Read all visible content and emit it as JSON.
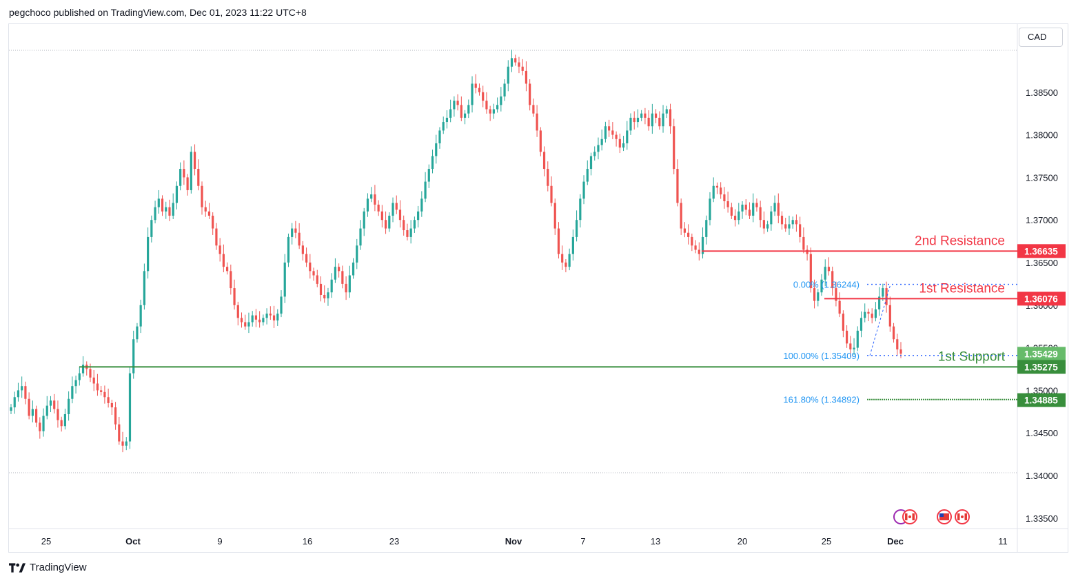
{
  "header": {
    "publish_line": "pegchoco published on TradingView.com, Dec 01, 2023 11:22 UTC+8"
  },
  "currency_label": "CAD",
  "footer": {
    "brand": "TradingView"
  },
  "colors": {
    "up": "#26a69a",
    "down": "#ef5350",
    "resistance": "#f23645",
    "support": "#388e3c",
    "fib": "#2962ff",
    "text": "#131722",
    "axis_text": "#131722"
  },
  "chart_data": {
    "type": "candlestick",
    "symbol_currency": "CAD",
    "ylim": [
      1.3325,
      1.388
    ],
    "y_ticks": [
      "1.34000",
      "1.34500",
      "1.35000",
      "1.35500",
      "1.36000",
      "1.36500",
      "1.37000",
      "1.37500",
      "1.38000",
      "1.38500"
    ],
    "x_ticks": [
      "25",
      "Oct",
      "9",
      "16",
      "23",
      "Nov",
      "7",
      "13",
      "20",
      "25",
      "Dec",
      "11"
    ],
    "price_labels": [
      {
        "value": "1.36635",
        "kind": "resistance"
      },
      {
        "value": "1.36076",
        "kind": "resistance"
      },
      {
        "value": "1.35429",
        "kind": "current"
      },
      {
        "value": "1.35275",
        "kind": "support"
      },
      {
        "value": "1.34885",
        "kind": "support"
      }
    ],
    "levels": [
      {
        "name": "2nd Resistance",
        "price": 1.36635
      },
      {
        "name": "1st Resistance",
        "price": 1.36076
      },
      {
        "name": "1st Support",
        "price": 1.35275
      }
    ],
    "fib_levels": [
      {
        "label": "0.00% (1.36244)",
        "price": 1.36244
      },
      {
        "label": "100.00% (1.35409)",
        "price": 1.35409
      },
      {
        "label": "161.80% (1.34892)",
        "price": 1.34892
      }
    ],
    "close_path": [
      1.348,
      1.3492,
      1.35,
      1.3505,
      1.349,
      1.347,
      1.3478,
      1.3462,
      1.3452,
      1.347,
      1.3482,
      1.3488,
      1.3478,
      1.3465,
      1.3458,
      1.3472,
      1.349,
      1.3505,
      1.3512,
      1.352,
      1.353,
      1.3525,
      1.3515,
      1.3508,
      1.35,
      1.3498,
      1.3492,
      1.3485,
      1.348,
      1.346,
      1.344,
      1.3435,
      1.344,
      1.352,
      1.356,
      1.3575,
      1.36,
      1.364,
      1.368,
      1.37,
      1.3715,
      1.3725,
      1.371,
      1.3715,
      1.3705,
      1.372,
      1.374,
      1.376,
      1.375,
      1.3735,
      1.378,
      1.376,
      1.374,
      1.3715,
      1.371,
      1.3705,
      1.369,
      1.367,
      1.366,
      1.3645,
      1.364,
      1.362,
      1.36,
      1.3585,
      1.358,
      1.3575,
      1.358,
      1.3588,
      1.3583,
      1.358,
      1.3585,
      1.359,
      1.3588,
      1.3582,
      1.359,
      1.361,
      1.365,
      1.368,
      1.369,
      1.3685,
      1.367,
      1.366,
      1.365,
      1.364,
      1.3635,
      1.3625,
      1.3612,
      1.3608,
      1.3615,
      1.363,
      1.3645,
      1.364,
      1.3625,
      1.3615,
      1.3635,
      1.365,
      1.367,
      1.369,
      1.371,
      1.3725,
      1.373,
      1.3718,
      1.371,
      1.37,
      1.369,
      1.3705,
      1.372,
      1.3712,
      1.37,
      1.3688,
      1.368,
      1.369,
      1.37,
      1.371,
      1.3725,
      1.3745,
      1.376,
      1.3775,
      1.379,
      1.3805,
      1.3815,
      1.382,
      1.383,
      1.384,
      1.3835,
      1.382,
      1.3825,
      1.3835,
      1.386,
      1.3855,
      1.385,
      1.384,
      1.383,
      1.3825,
      1.383,
      1.3835,
      1.3845,
      1.386,
      1.388,
      1.389,
      1.3885,
      1.388,
      1.3875,
      1.386,
      1.3835,
      1.3825,
      1.3805,
      1.378,
      1.376,
      1.374,
      1.372,
      1.369,
      1.366,
      1.365,
      1.3645,
      1.366,
      1.368,
      1.37,
      1.3725,
      1.3745,
      1.376,
      1.3775,
      1.378,
      1.3788,
      1.3795,
      1.381,
      1.3805,
      1.38,
      1.3795,
      1.3785,
      1.379,
      1.3805,
      1.382,
      1.3815,
      1.382,
      1.3825,
      1.382,
      1.381,
      1.3825,
      1.382,
      1.381,
      1.3825,
      1.383,
      1.381,
      1.376,
      1.372,
      1.369,
      1.3685,
      1.368,
      1.367,
      1.3665,
      1.366,
      1.368,
      1.37,
      1.3725,
      1.374,
      1.3738,
      1.373,
      1.3722,
      1.3715,
      1.3705,
      1.37,
      1.371,
      1.3718,
      1.3712,
      1.3705,
      1.372,
      1.3715,
      1.37,
      1.369,
      1.3695,
      1.371,
      1.372,
      1.3705,
      1.3695,
      1.369,
      1.3695,
      1.37,
      1.3695,
      1.368,
      1.3665,
      1.366,
      1.362,
      1.3605,
      1.3615,
      1.363,
      1.3645,
      1.364,
      1.362,
      1.3605,
      1.359,
      1.357,
      1.3555,
      1.3548,
      1.355,
      1.357,
      1.3585,
      1.3592,
      1.359,
      1.3585,
      1.3595,
      1.361,
      1.362,
      1.36,
      1.3575,
      1.356,
      1.3548,
      1.3543
    ]
  }
}
